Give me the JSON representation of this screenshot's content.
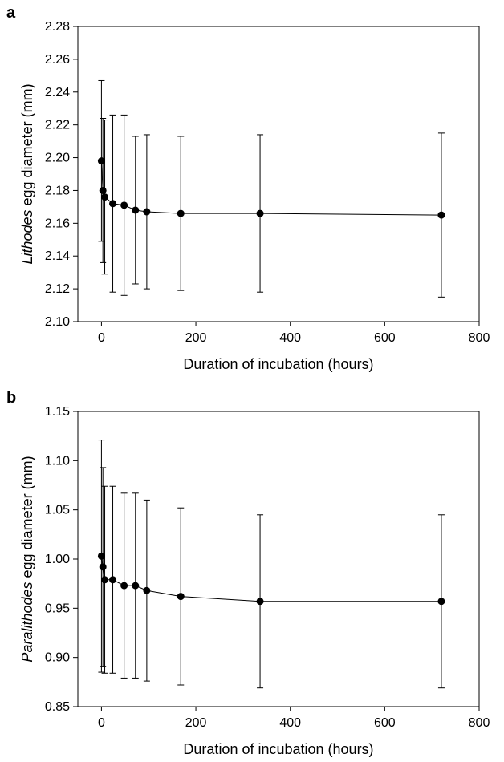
{
  "chart_data": [
    {
      "type": "scatter",
      "panel_label": "a",
      "xlabel": "Duration of incubation (hours)",
      "ylabel_italic": "Lithodes",
      "ylabel_rest": " egg diameter (mm)",
      "xlim": [
        -50,
        800
      ],
      "ylim": [
        2.1,
        2.28
      ],
      "xticks": [
        0,
        200,
        400,
        600,
        800
      ],
      "yticks": [
        2.1,
        2.12,
        2.14,
        2.16,
        2.18,
        2.2,
        2.22,
        2.24,
        2.26,
        2.28
      ],
      "ytick_decimals": 2,
      "connect_points": true,
      "error_bars": true,
      "points": [
        {
          "x": 0,
          "y": 2.198,
          "err": 0.049
        },
        {
          "x": 3,
          "y": 2.18,
          "err": 0.044
        },
        {
          "x": 7,
          "y": 2.176,
          "err": 0.047
        },
        {
          "x": 24,
          "y": 2.172,
          "err": 0.054
        },
        {
          "x": 48,
          "y": 2.171,
          "err": 0.055
        },
        {
          "x": 72,
          "y": 2.168,
          "err": 0.045
        },
        {
          "x": 96,
          "y": 2.167,
          "err": 0.047
        },
        {
          "x": 168,
          "y": 2.166,
          "err": 0.047
        },
        {
          "x": 336,
          "y": 2.166,
          "err": 0.048
        },
        {
          "x": 720,
          "y": 2.165,
          "err": 0.05
        }
      ]
    },
    {
      "type": "scatter",
      "panel_label": "b",
      "xlabel": "Duration of incubation (hours)",
      "ylabel_italic": "Paralithodes",
      "ylabel_rest": " egg diameter (mm)",
      "xlim": [
        -50,
        800
      ],
      "ylim": [
        0.85,
        1.15
      ],
      "xticks": [
        0,
        200,
        400,
        600,
        800
      ],
      "yticks": [
        0.85,
        0.9,
        0.95,
        1.0,
        1.05,
        1.1,
        1.15
      ],
      "ytick_decimals": 2,
      "connect_points": true,
      "error_bars": true,
      "points": [
        {
          "x": 0,
          "y": 1.003,
          "err": 0.118
        },
        {
          "x": 3,
          "y": 0.992,
          "err": 0.101
        },
        {
          "x": 7,
          "y": 0.979,
          "err": 0.095
        },
        {
          "x": 24,
          "y": 0.979,
          "err": 0.095
        },
        {
          "x": 48,
          "y": 0.973,
          "err": 0.094
        },
        {
          "x": 72,
          "y": 0.973,
          "err": 0.094
        },
        {
          "x": 96,
          "y": 0.968,
          "err": 0.092
        },
        {
          "x": 168,
          "y": 0.962,
          "err": 0.09
        },
        {
          "x": 336,
          "y": 0.957,
          "err": 0.088
        },
        {
          "x": 720,
          "y": 0.957,
          "err": 0.088
        }
      ]
    }
  ]
}
